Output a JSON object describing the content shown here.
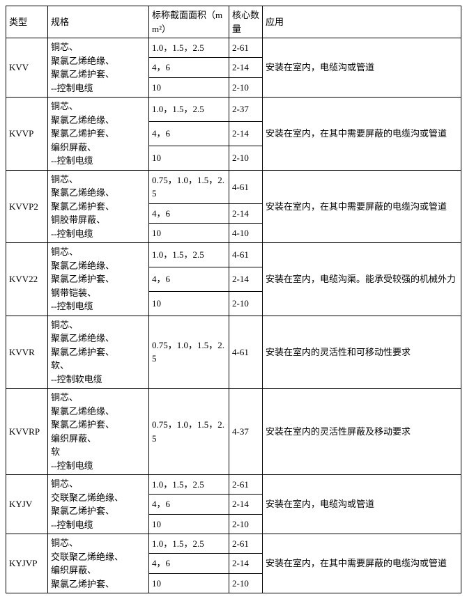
{
  "headers": {
    "type": "类型",
    "spec": "规格",
    "area": "标称截面面积（mm²）",
    "cores": "核心数量",
    "app": "应用"
  },
  "groups": [
    {
      "type": "KVV",
      "spec": "铜芯、\n聚氯乙烯绝缘、\n聚氯乙烯护套、\n--控制电缆",
      "rows": [
        {
          "area": "1.0，1.5，2.5",
          "cores": "2-61"
        },
        {
          "area": "4，6",
          "cores": "2-14"
        },
        {
          "area": "10",
          "cores": "2-10"
        }
      ],
      "app": "安装在室内，电缆沟或管道"
    },
    {
      "type": "KVVP",
      "spec": "铜芯、\n聚氯乙烯绝缘、\n聚氯乙烯护套、\n编织屏蔽、\n--控制电缆",
      "rows": [
        {
          "area": "1.0，1.5，2.5",
          "cores": "2-37"
        },
        {
          "area": "4，6",
          "cores": "2-14"
        },
        {
          "area": "10",
          "cores": "2-10"
        }
      ],
      "app": "安装在室内，在其中需要屏蔽的电缆沟或管道"
    },
    {
      "type": "KVVP2",
      "spec": "铜芯、\n聚氯乙烯绝缘、\n聚氯乙烯护套、\n铜胶带屏蔽、\n--控制电缆",
      "rows": [
        {
          "area": "0.75，1.0，1.5，2.5",
          "cores": "4-61"
        },
        {
          "area": "4，6",
          "cores": "2-14"
        },
        {
          "area": "10",
          "cores": "4-10"
        }
      ],
      "app": "安装在室内，在其中需要屏蔽的电缆沟或管道"
    },
    {
      "type": "KVV22",
      "spec": "铜芯、\n聚氯乙烯绝缘、\n聚氯乙烯护套、\n钢带铠装、\n--控制电缆",
      "rows": [
        {
          "area": "1.0，1.5，2.5",
          "cores": "4-61"
        },
        {
          "area": "4，6",
          "cores": "2-14"
        },
        {
          "area": "10",
          "cores": "2-10"
        }
      ],
      "app": "安装在室内，电缆沟渠。能承受较强的机械外力"
    },
    {
      "type": "KVVR",
      "spec": "铜芯、\n聚氯乙烯绝缘、\n聚氯乙烯护套、\n软、\n--控制软电缆",
      "rows": [
        {
          "area": "0.75，1.0，1.5，2.5",
          "cores": "4-61"
        }
      ],
      "app": "安装在室内的灵活性和可移动性要求"
    },
    {
      "type": "KVVRP",
      "spec": "铜芯、\n聚氯乙烯绝缘、\n聚氯乙烯护套、\n编织屏蔽、\n软\n--控制电缆",
      "rows": [
        {
          "area": "0.75，1.0，1.5，2.5",
          "cores": "4-37"
        }
      ],
      "app": "安装在室内的灵活性屏蔽及移动要求"
    },
    {
      "type": "KYJV",
      "spec": "铜芯、\n交联聚乙烯绝缘、\n聚氯乙烯护套、\n--控制电缆",
      "rows": [
        {
          "area": "1.0，1.5，2.5",
          "cores": "2-61"
        },
        {
          "area": "4，6",
          "cores": "2-14"
        },
        {
          "area": "10",
          "cores": "2-10"
        }
      ],
      "app": "安装在室内，电缆沟或管道"
    },
    {
      "type": "KYJVP",
      "spec": "铜芯、\n交联聚乙烯绝缘、\n编织屏蔽、\n聚氯乙烯护套、",
      "rows": [
        {
          "area": "1.0，1.5，2.5",
          "cores": "2-61"
        },
        {
          "area": "4，6",
          "cores": "2-14"
        },
        {
          "area": "10",
          "cores": "2-10"
        }
      ],
      "app": "安装在室内，在其中需要屏蔽的电缆沟或管道"
    }
  ]
}
